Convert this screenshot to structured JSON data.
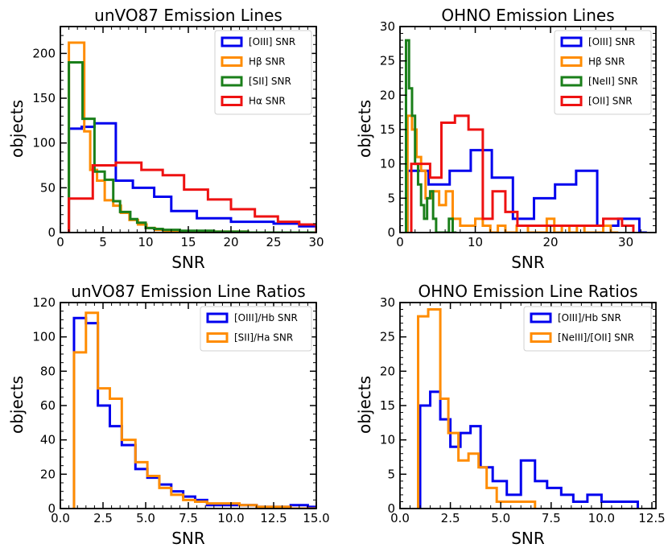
{
  "chart_data": [
    {
      "type": "histogram-step",
      "title": "unVO87 Emission Lines",
      "xlabel": "SNR",
      "ylabel": "objects",
      "xlim": [
        0,
        30
      ],
      "ylim": [
        0,
        230
      ],
      "xticks": [
        0,
        5,
        10,
        15,
        20,
        25,
        30
      ],
      "xtick_labels": [
        "0",
        "5",
        "10",
        "15",
        "20",
        "25",
        "30"
      ],
      "yticks": [
        0,
        50,
        100,
        150,
        200
      ],
      "ytick_labels": [
        "0",
        "50",
        "100",
        "150",
        "200"
      ],
      "x_minor": 1,
      "y_minor": 10,
      "legend_location": "upper-right",
      "series": [
        {
          "name": "[OIII] SNR",
          "color": "#0000ee",
          "edges": [
            1,
            2.5,
            4,
            6.5,
            8.5,
            11,
            13,
            16,
            20,
            25,
            28,
            30
          ],
          "counts": [
            116,
            118,
            122,
            58,
            50,
            40,
            24,
            16,
            12,
            10,
            7
          ]
        },
        {
          "name": "Hβ SNR",
          "color": "#ff8c00",
          "edges": [
            1,
            2.8,
            3.5,
            4.3,
            5.2,
            6.2,
            7.1,
            8.1,
            9.1,
            10.1,
            11.1,
            12.1,
            14,
            18,
            22,
            26,
            30
          ],
          "counts": [
            212,
            113,
            70,
            58,
            36,
            30,
            22,
            14,
            9,
            5,
            3,
            2,
            1,
            1,
            0,
            0
          ]
        },
        {
          "name": "[SII] SNR",
          "color": "#1a7f1a",
          "edges": [
            1,
            2.6,
            4,
            5.2,
            6.2,
            7,
            8.2,
            9,
            10,
            11,
            12,
            14,
            18,
            22,
            26,
            30
          ],
          "counts": [
            190,
            127,
            68,
            59,
            35,
            23,
            15,
            11,
            5,
            4,
            3,
            2,
            1,
            0,
            0
          ]
        },
        {
          "name": "Hα SNR",
          "color": "#ee1111",
          "edges": [
            1,
            3.8,
            6.5,
            9.5,
            12,
            14.5,
            17.3,
            20,
            22.8,
            25.5,
            28,
            30
          ],
          "counts": [
            38,
            75,
            78,
            70,
            64,
            48,
            37,
            26,
            18,
            12,
            9
          ]
        }
      ]
    },
    {
      "type": "histogram-step",
      "title": "OHNO Emission Lines",
      "xlabel": "SNR",
      "ylabel": "objects",
      "xlim": [
        0,
        34
      ],
      "ylim": [
        0,
        30
      ],
      "xticks": [
        0,
        10,
        20,
        30
      ],
      "xtick_labels": [
        "0",
        "10",
        "20",
        "30"
      ],
      "yticks": [
        0,
        5,
        10,
        15,
        20,
        25,
        30
      ],
      "ytick_labels": [
        "0",
        "5",
        "10",
        "15",
        "20",
        "25",
        "30"
      ],
      "x_minor": 2,
      "y_minor": 1,
      "legend_location": "upper-right",
      "series": [
        {
          "name": "[OIII] SNR",
          "color": "#0000ee",
          "edges": [
            1,
            3.8,
            6.6,
            9.4,
            12.2,
            15,
            17.8,
            20.6,
            23.4,
            26.2,
            29,
            31.8,
            32.8
          ],
          "counts": [
            9,
            7,
            9,
            12,
            8,
            2,
            5,
            7,
            9,
            1,
            2,
            0
          ]
        },
        {
          "name": "Hβ SNR",
          "color": "#ff8c00",
          "edges": [
            1,
            1.6,
            2.2,
            2.8,
            3.4,
            4.3,
            5.2,
            6.1,
            7,
            8,
            9,
            10,
            11,
            12,
            13,
            14,
            15.5,
            17,
            18.5,
            19.5,
            20.5,
            21.5,
            22.5,
            23.5,
            24.5,
            25.5,
            27,
            28,
            29
          ],
          "counts": [
            17,
            15,
            11,
            9,
            5,
            6,
            4,
            6,
            2,
            1,
            1,
            2,
            1,
            0,
            1,
            0,
            1,
            0,
            0,
            2,
            0,
            1,
            0,
            1,
            0,
            0,
            1,
            0
          ]
        },
        {
          "name": "[NeII] SNR",
          "color": "#1a7f1a",
          "edges": [
            0.8,
            1.2,
            1.6,
            2.0,
            2.4,
            2.8,
            3.2,
            3.6,
            4.0,
            4.4,
            4.8,
            5.2,
            6.5,
            7.0,
            7.5
          ],
          "counts": [
            28,
            21,
            17,
            10,
            7,
            4,
            2,
            5,
            6,
            2,
            0,
            0,
            2,
            0
          ]
        },
        {
          "name": "[OII] SNR",
          "color": "#ee1111",
          "edges": [
            1.5,
            4,
            5.5,
            7.3,
            9.1,
            11,
            12.3,
            14,
            15.6,
            18,
            21,
            24,
            27,
            29.5,
            31
          ],
          "counts": [
            10,
            8,
            16,
            17,
            15,
            2,
            6,
            3,
            1,
            1,
            1,
            1,
            2,
            1
          ]
        }
      ]
    },
    {
      "type": "histogram-step",
      "title": "unVO87 Emission Line Ratios",
      "xlabel": "SNR",
      "ylabel": "objects",
      "xlim": [
        0,
        15
      ],
      "ylim": [
        0,
        120
      ],
      "xticks": [
        0,
        2.5,
        5,
        7.5,
        10,
        12.5,
        15
      ],
      "xtick_labels": [
        "0.0",
        "2.5",
        "5.0",
        "7.5",
        "10.0",
        "12.5",
        "15.0"
      ],
      "yticks": [
        0,
        20,
        40,
        60,
        80,
        100,
        120
      ],
      "ytick_labels": [
        "0",
        "20",
        "40",
        "60",
        "80",
        "100",
        "120"
      ],
      "x_minor": 0.5,
      "y_minor": 5,
      "legend_location": "upper-right",
      "series": [
        {
          "name": "[OIII]/Hb SNR",
          "color": "#0000ee",
          "edges": [
            0.8,
            1.5,
            2.2,
            2.9,
            3.6,
            4.4,
            5.1,
            5.8,
            6.5,
            7.2,
            7.9,
            8.6,
            9.5,
            10.5,
            11.5,
            12.5,
            13.5,
            14.5,
            15
          ],
          "counts": [
            111,
            108,
            60,
            48,
            37,
            23,
            18,
            14,
            10,
            7,
            5,
            2,
            2,
            2,
            1,
            1,
            2,
            1
          ]
        },
        {
          "name": "[SII]/Ha SNR",
          "color": "#ff8c00",
          "edges": [
            0.8,
            1.5,
            2.2,
            2.9,
            3.6,
            4.4,
            5.1,
            5.8,
            6.5,
            7.2,
            7.9,
            8.6,
            9.5,
            10.5,
            11.5,
            12.5,
            13.5,
            14.5,
            15
          ],
          "counts": [
            91,
            114,
            70,
            64,
            40,
            27,
            19,
            12,
            8,
            5,
            4,
            3,
            3,
            2,
            1,
            1,
            0,
            0
          ]
        }
      ]
    },
    {
      "type": "histogram-step",
      "title": "OHNO Emission Line Ratios",
      "xlabel": "SNR",
      "ylabel": "objects",
      "xlim": [
        0,
        12.7
      ],
      "ylim": [
        0,
        30
      ],
      "xticks": [
        0,
        2.5,
        5,
        7.5,
        10,
        12.5
      ],
      "xtick_labels": [
        "0.0",
        "2.5",
        "5.0",
        "7.5",
        "10.0",
        "12.5"
      ],
      "yticks": [
        0,
        5,
        10,
        15,
        20,
        25,
        30
      ],
      "ytick_labels": [
        "0",
        "5",
        "10",
        "15",
        "20",
        "25",
        "30"
      ],
      "x_minor": 0.5,
      "y_minor": 1,
      "legend_location": "upper-right",
      "series": [
        {
          "name": "[OIII]/Hb SNR",
          "color": "#0000ee",
          "edges": [
            1.0,
            1.5,
            2.0,
            2.5,
            3.0,
            3.5,
            4.0,
            4.6,
            5.3,
            6.0,
            6.7,
            7.3,
            8.0,
            8.6,
            9.3,
            10.0,
            10.6,
            11.8
          ],
          "counts": [
            15,
            17,
            13,
            9,
            11,
            12,
            6,
            4,
            2,
            7,
            4,
            3,
            2,
            1,
            2,
            1,
            1
          ]
        },
        {
          "name": "[NeIII]/[OII] SNR",
          "color": "#ff8c00",
          "edges": [
            0.9,
            1.4,
            2.0,
            2.4,
            2.9,
            3.4,
            3.9,
            4.3,
            4.8,
            5.3,
            5.8,
            6.3,
            6.7
          ],
          "counts": [
            28,
            29,
            16,
            11,
            7,
            8,
            6,
            3,
            1,
            1,
            1,
            1
          ]
        }
      ]
    }
  ]
}
